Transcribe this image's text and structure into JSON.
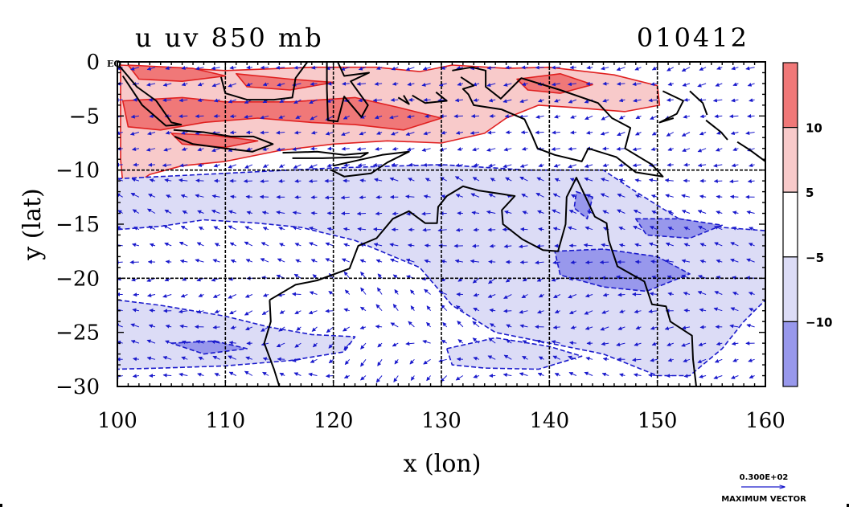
{
  "chart_data": {
    "type": "heatmap",
    "title_left": "u uv 850 mb",
    "title_right": "010412",
    "xlabel": "x (lon)",
    "ylabel": "y (lat)",
    "xlim": [
      100,
      160
    ],
    "ylim": [
      -30,
      0
    ],
    "x_ticks": [
      {
        "value": 100,
        "label": "100"
      },
      {
        "value": 110,
        "label": "110"
      },
      {
        "value": 120,
        "label": "120"
      },
      {
        "value": 130,
        "label": "130"
      },
      {
        "value": 140,
        "label": "140"
      },
      {
        "value": 150,
        "label": "150"
      },
      {
        "value": 160,
        "label": "160"
      }
    ],
    "y_ticks": [
      {
        "value": 0,
        "label": "0"
      },
      {
        "value": -5,
        "label": "−5"
      },
      {
        "value": -10,
        "label": "−10"
      },
      {
        "value": -15,
        "label": "−15"
      },
      {
        "value": -20,
        "label": "−20"
      },
      {
        "value": -25,
        "label": "−25"
      },
      {
        "value": -30,
        "label": "−30"
      }
    ],
    "equator_label": "EQ",
    "grid_lon": [
      110,
      120,
      130,
      140,
      150
    ],
    "grid_lat": [
      -10,
      -20
    ],
    "colorbar": {
      "bands": [
        {
          "range": [
            10,
            15
          ],
          "color": "#f07878"
        },
        {
          "range": [
            5,
            10
          ],
          "color": "#f8caca"
        },
        {
          "range": [
            -5,
            5
          ],
          "color": "#ffffff"
        },
        {
          "range": [
            -10,
            -5
          ],
          "color": "#dcdcf6"
        },
        {
          "range": [
            -15,
            -10
          ],
          "color": "#9898ec"
        }
      ],
      "labels": [
        {
          "value": 10,
          "label": "10"
        },
        {
          "value": 5,
          "label": "5"
        },
        {
          "value": -5,
          "label": "−5"
        },
        {
          "value": -10,
          "label": "−10"
        }
      ]
    },
    "regions": [
      {
        "level": "pos5",
        "color": "#f8caca",
        "outline": "#e02020",
        "points": [
          [
            100.3,
            -0.3
          ],
          [
            110,
            -0.8
          ],
          [
            118,
            -0.5
          ],
          [
            124,
            -0.5
          ],
          [
            128,
            -0.9
          ],
          [
            131,
            -0.3
          ],
          [
            136,
            -0.6
          ],
          [
            140,
            -0.5
          ],
          [
            146,
            -1.2
          ],
          [
            150,
            -2.2
          ],
          [
            150.2,
            -4
          ],
          [
            147,
            -4.6
          ],
          [
            142,
            -4.2
          ],
          [
            139,
            -4
          ],
          [
            136,
            -5.2
          ],
          [
            134,
            -6.6
          ],
          [
            130,
            -7.5
          ],
          [
            125,
            -7.3
          ],
          [
            120,
            -7.6
          ],
          [
            115,
            -8.2
          ],
          [
            110,
            -9.2
          ],
          [
            106,
            -9.6
          ],
          [
            103,
            -10.4
          ],
          [
            101.5,
            -11.4
          ],
          [
            100.5,
            -11.2
          ],
          [
            100.3,
            -9
          ]
        ]
      },
      {
        "level": "pos10",
        "color": "#f07878",
        "outline": "#e02020",
        "points": [
          [
            100.5,
            -3.6
          ],
          [
            106,
            -3.3
          ],
          [
            110,
            -3.7
          ],
          [
            116,
            -3.7
          ],
          [
            122,
            -3.3
          ],
          [
            126,
            -4.2
          ],
          [
            130,
            -5.2
          ],
          [
            126.5,
            -6.3
          ],
          [
            122,
            -5.8
          ],
          [
            118,
            -5.6
          ],
          [
            113,
            -5.2
          ],
          [
            108,
            -5.6
          ],
          [
            104,
            -6.3
          ],
          [
            101,
            -6
          ]
        ]
      },
      {
        "level": "pos10",
        "color": "#f07878",
        "outline": "#e02020",
        "points": [
          [
            105,
            -6.6
          ],
          [
            109,
            -6.8
          ],
          [
            113,
            -7.3
          ],
          [
            110,
            -7.9
          ],
          [
            106,
            -7.6
          ]
        ]
      },
      {
        "level": "pos10",
        "color": "#f07878",
        "outline": "#e02020",
        "points": [
          [
            101,
            -0.3
          ],
          [
            107,
            -0.6
          ],
          [
            110,
            -1.3
          ],
          [
            106,
            -1.8
          ],
          [
            102,
            -1.6
          ]
        ]
      },
      {
        "level": "pos10",
        "color": "#f07878",
        "outline": "#e02020",
        "points": [
          [
            111,
            -1.1
          ],
          [
            116,
            -1.6
          ],
          [
            120,
            -1.9
          ],
          [
            116,
            -2.6
          ],
          [
            112,
            -2.3
          ]
        ]
      },
      {
        "level": "pos10",
        "color": "#f07878",
        "outline": "#e02020",
        "points": [
          [
            137,
            -1.6
          ],
          [
            141,
            -1.1
          ],
          [
            144,
            -2.1
          ],
          [
            141,
            -2.9
          ],
          [
            138,
            -2.6
          ]
        ]
      },
      {
        "level": "neg5",
        "color": "#dcdcf6",
        "outline": "#1a1acc",
        "points": [
          [
            100,
            -10.8
          ],
          [
            110,
            -10.3
          ],
          [
            120,
            -9.8
          ],
          [
            130,
            -9.5
          ],
          [
            138,
            -10
          ],
          [
            145,
            -10
          ],
          [
            148,
            -12
          ],
          [
            152,
            -14.5
          ],
          [
            156,
            -15.3
          ],
          [
            160,
            -15.6
          ],
          [
            160,
            -22
          ],
          [
            158,
            -24
          ],
          [
            156,
            -26.5
          ],
          [
            153,
            -29
          ],
          [
            150,
            -29
          ],
          [
            145,
            -27
          ],
          [
            140,
            -26
          ],
          [
            135,
            -25
          ],
          [
            131,
            -22.5
          ],
          [
            128,
            -19
          ],
          [
            122,
            -16.5
          ],
          [
            117,
            -15.3
          ],
          [
            113,
            -14.9
          ],
          [
            108,
            -14.6
          ],
          [
            104,
            -15.2
          ],
          [
            100,
            -15.5
          ]
        ]
      },
      {
        "level": "neg5",
        "color": "#dcdcf6",
        "outline": "#1a1acc",
        "points": [
          [
            100,
            -22
          ],
          [
            104,
            -22.5
          ],
          [
            110,
            -23.5
          ],
          [
            114,
            -24.5
          ],
          [
            118,
            -25.2
          ],
          [
            122,
            -25.4
          ],
          [
            121,
            -26.8
          ],
          [
            116,
            -27.6
          ],
          [
            110,
            -28.1
          ],
          [
            104,
            -28.3
          ],
          [
            100,
            -28.4
          ]
        ]
      },
      {
        "level": "neg5",
        "color": "#dcdcf6",
        "outline": "#1a1acc",
        "points": [
          [
            130.5,
            -26.5
          ],
          [
            135,
            -25.5
          ],
          [
            140,
            -26.3
          ],
          [
            143,
            -27.2
          ],
          [
            139,
            -28.4
          ],
          [
            134,
            -28.3
          ],
          [
            131,
            -28
          ]
        ]
      },
      {
        "level": "neg10",
        "color": "#9898ec",
        "outline": "#1a1acc",
        "points": [
          [
            140.5,
            -17.5
          ],
          [
            145,
            -17.3
          ],
          [
            150,
            -18
          ],
          [
            153,
            -19.6
          ],
          [
            149,
            -21.2
          ],
          [
            145,
            -20.8
          ],
          [
            141,
            -19.7
          ]
        ]
      },
      {
        "level": "neg10",
        "color": "#9898ec",
        "outline": "#1a1acc",
        "points": [
          [
            148,
            -14.5
          ],
          [
            152,
            -14.5
          ],
          [
            156,
            -15.1
          ],
          [
            153,
            -16.3
          ],
          [
            149,
            -16
          ]
        ]
      },
      {
        "level": "neg10",
        "color": "#9898ec",
        "outline": "#1a1acc",
        "points": [
          [
            142.5,
            -12
          ],
          [
            144,
            -12.5
          ],
          [
            143.5,
            -14.5
          ],
          [
            142.3,
            -13.5
          ]
        ]
      },
      {
        "level": "neg10",
        "color": "#9898ec",
        "outline": "#1a1acc",
        "points": [
          [
            105,
            -26
          ],
          [
            109,
            -25.8
          ],
          [
            112,
            -26.5
          ],
          [
            108,
            -27
          ]
        ]
      }
    ],
    "coastlines": [
      [
        [
          114.1,
          -22
        ],
        [
          114.2,
          -24
        ],
        [
          113.6,
          -26
        ],
        [
          114.5,
          -28.4
        ],
        [
          115,
          -30
        ]
      ],
      [
        [
          114.1,
          -22
        ],
        [
          116.5,
          -20.6
        ],
        [
          118.5,
          -20.2
        ],
        [
          121.5,
          -19.1
        ],
        [
          122.3,
          -17
        ],
        [
          124,
          -16.3
        ],
        [
          125.5,
          -14.5
        ],
        [
          127,
          -13.8
        ],
        [
          128.5,
          -14.9
        ],
        [
          129.6,
          -14.9
        ],
        [
          129.7,
          -13.4
        ],
        [
          130.5,
          -12.4
        ],
        [
          132,
          -11.5
        ],
        [
          133.5,
          -11.9
        ],
        [
          135.5,
          -12.2
        ],
        [
          136.8,
          -12.4
        ],
        [
          135.6,
          -13.7
        ],
        [
          135.7,
          -15
        ],
        [
          137.5,
          -16.4
        ],
        [
          139.4,
          -17.4
        ],
        [
          140.8,
          -17.5
        ],
        [
          141.5,
          -15
        ],
        [
          141.6,
          -12.5
        ],
        [
          142.5,
          -10.7
        ],
        [
          143.5,
          -12.8
        ],
        [
          144.2,
          -14.3
        ],
        [
          145.3,
          -14.9
        ],
        [
          145.5,
          -16.5
        ],
        [
          146.3,
          -18.9
        ],
        [
          148.8,
          -20.3
        ],
        [
          149.5,
          -22.4
        ],
        [
          150.8,
          -22.6
        ],
        [
          151.2,
          -24
        ],
        [
          153.2,
          -25.3
        ],
        [
          153.3,
          -27.5
        ],
        [
          153.6,
          -30
        ]
      ],
      [
        [
          100.2,
          -0.4
        ],
        [
          101.8,
          -2.3
        ],
        [
          103.6,
          -3.6
        ],
        [
          105,
          -5.6
        ],
        [
          105.9,
          -5.8
        ],
        [
          104.5,
          -5.9
        ],
        [
          102.3,
          -4
        ],
        [
          100.5,
          -1.3
        ]
      ],
      [
        [
          105.2,
          -6.3
        ],
        [
          108,
          -6.5
        ],
        [
          110.5,
          -6.9
        ],
        [
          112.6,
          -6.9
        ],
        [
          114.4,
          -7.6
        ],
        [
          112.5,
          -8.3
        ],
        [
          110,
          -8
        ],
        [
          107,
          -7.6
        ],
        [
          105.3,
          -6.9
        ]
      ],
      [
        [
          115.3,
          -8.4
        ],
        [
          118.5,
          -8.3
        ],
        [
          121,
          -8.6
        ],
        [
          123.2,
          -8.4
        ],
        [
          122.5,
          -8.8
        ],
        [
          119,
          -8.9
        ],
        [
          116.2,
          -8.9
        ]
      ],
      [
        [
          120,
          -9.6
        ],
        [
          124.5,
          -8.6
        ],
        [
          127,
          -8.3
        ],
        [
          125,
          -9.3
        ],
        [
          123.5,
          -10.3
        ],
        [
          121,
          -10.6
        ],
        [
          119.8,
          -10
        ]
      ],
      [
        [
          109.6,
          -1.4
        ],
        [
          110,
          -2.9
        ],
        [
          112,
          -3.5
        ],
        [
          114.5,
          -3.5
        ],
        [
          116.2,
          -3.3
        ],
        [
          116.5,
          -1.5
        ],
        [
          117.6,
          0
        ]
      ],
      [
        [
          119.4,
          0
        ],
        [
          119.4,
          -2.5
        ],
        [
          119.5,
          -5.4
        ],
        [
          120.4,
          -5.5
        ],
        [
          121,
          -3.2
        ],
        [
          122.6,
          -5.1
        ],
        [
          123.2,
          -4
        ],
        [
          121.6,
          -1.8
        ],
        [
          123.3,
          -1
        ],
        [
          121,
          -1.3
        ],
        [
          120.4,
          0
        ]
      ],
      [
        [
          127.3,
          -3.1
        ],
        [
          128.5,
          -3.8
        ],
        [
          130.5,
          -3.6
        ],
        [
          129.5,
          -2.8
        ]
      ],
      [
        [
          126,
          -3.3
        ],
        [
          127,
          -3.9
        ],
        [
          126.5,
          -3.1
        ]
      ],
      [
        [
          131,
          -0.8
        ],
        [
          132.8,
          -0.5
        ],
        [
          134.1,
          -0.8
        ],
        [
          134.1,
          -2.3
        ],
        [
          135.5,
          -3.4
        ],
        [
          137.4,
          -1.5
        ],
        [
          141,
          -2.6
        ],
        [
          144.5,
          -3.8
        ],
        [
          145.8,
          -5.2
        ],
        [
          147.5,
          -6.1
        ],
        [
          147,
          -8
        ],
        [
          149.5,
          -9.5
        ],
        [
          150.5,
          -10.6
        ],
        [
          148,
          -10.2
        ],
        [
          146.2,
          -8.8
        ],
        [
          143.6,
          -8
        ],
        [
          143,
          -9.2
        ],
        [
          140.5,
          -8.6
        ],
        [
          138.9,
          -8
        ],
        [
          138.4,
          -6.8
        ],
        [
          137.7,
          -5.3
        ],
        [
          135.6,
          -4.4
        ],
        [
          133,
          -4
        ],
        [
          132.5,
          -3
        ],
        [
          132,
          -2.5
        ],
        [
          133,
          -2.2
        ],
        [
          131.8,
          -1.4
        ]
      ],
      [
        [
          150.5,
          -2.7
        ],
        [
          152.4,
          -3.6
        ],
        [
          151.8,
          -4.8
        ],
        [
          150.2,
          -5.6
        ],
        [
          151.5,
          -5.2
        ]
      ],
      [
        [
          154.5,
          -5.4
        ],
        [
          155.9,
          -6.5
        ],
        [
          156.5,
          -7.2
        ]
      ],
      [
        [
          157.4,
          -7.4
        ],
        [
          158.5,
          -8.1
        ],
        [
          160,
          -9.2
        ]
      ],
      [
        [
          153,
          -2.7
        ],
        [
          154.2,
          -3.8
        ],
        [
          154.6,
          -4.9
        ]
      ]
    ],
    "vector_legend": {
      "value_label": "0.300E+02",
      "caption": "MAXIMUM VECTOR"
    }
  }
}
